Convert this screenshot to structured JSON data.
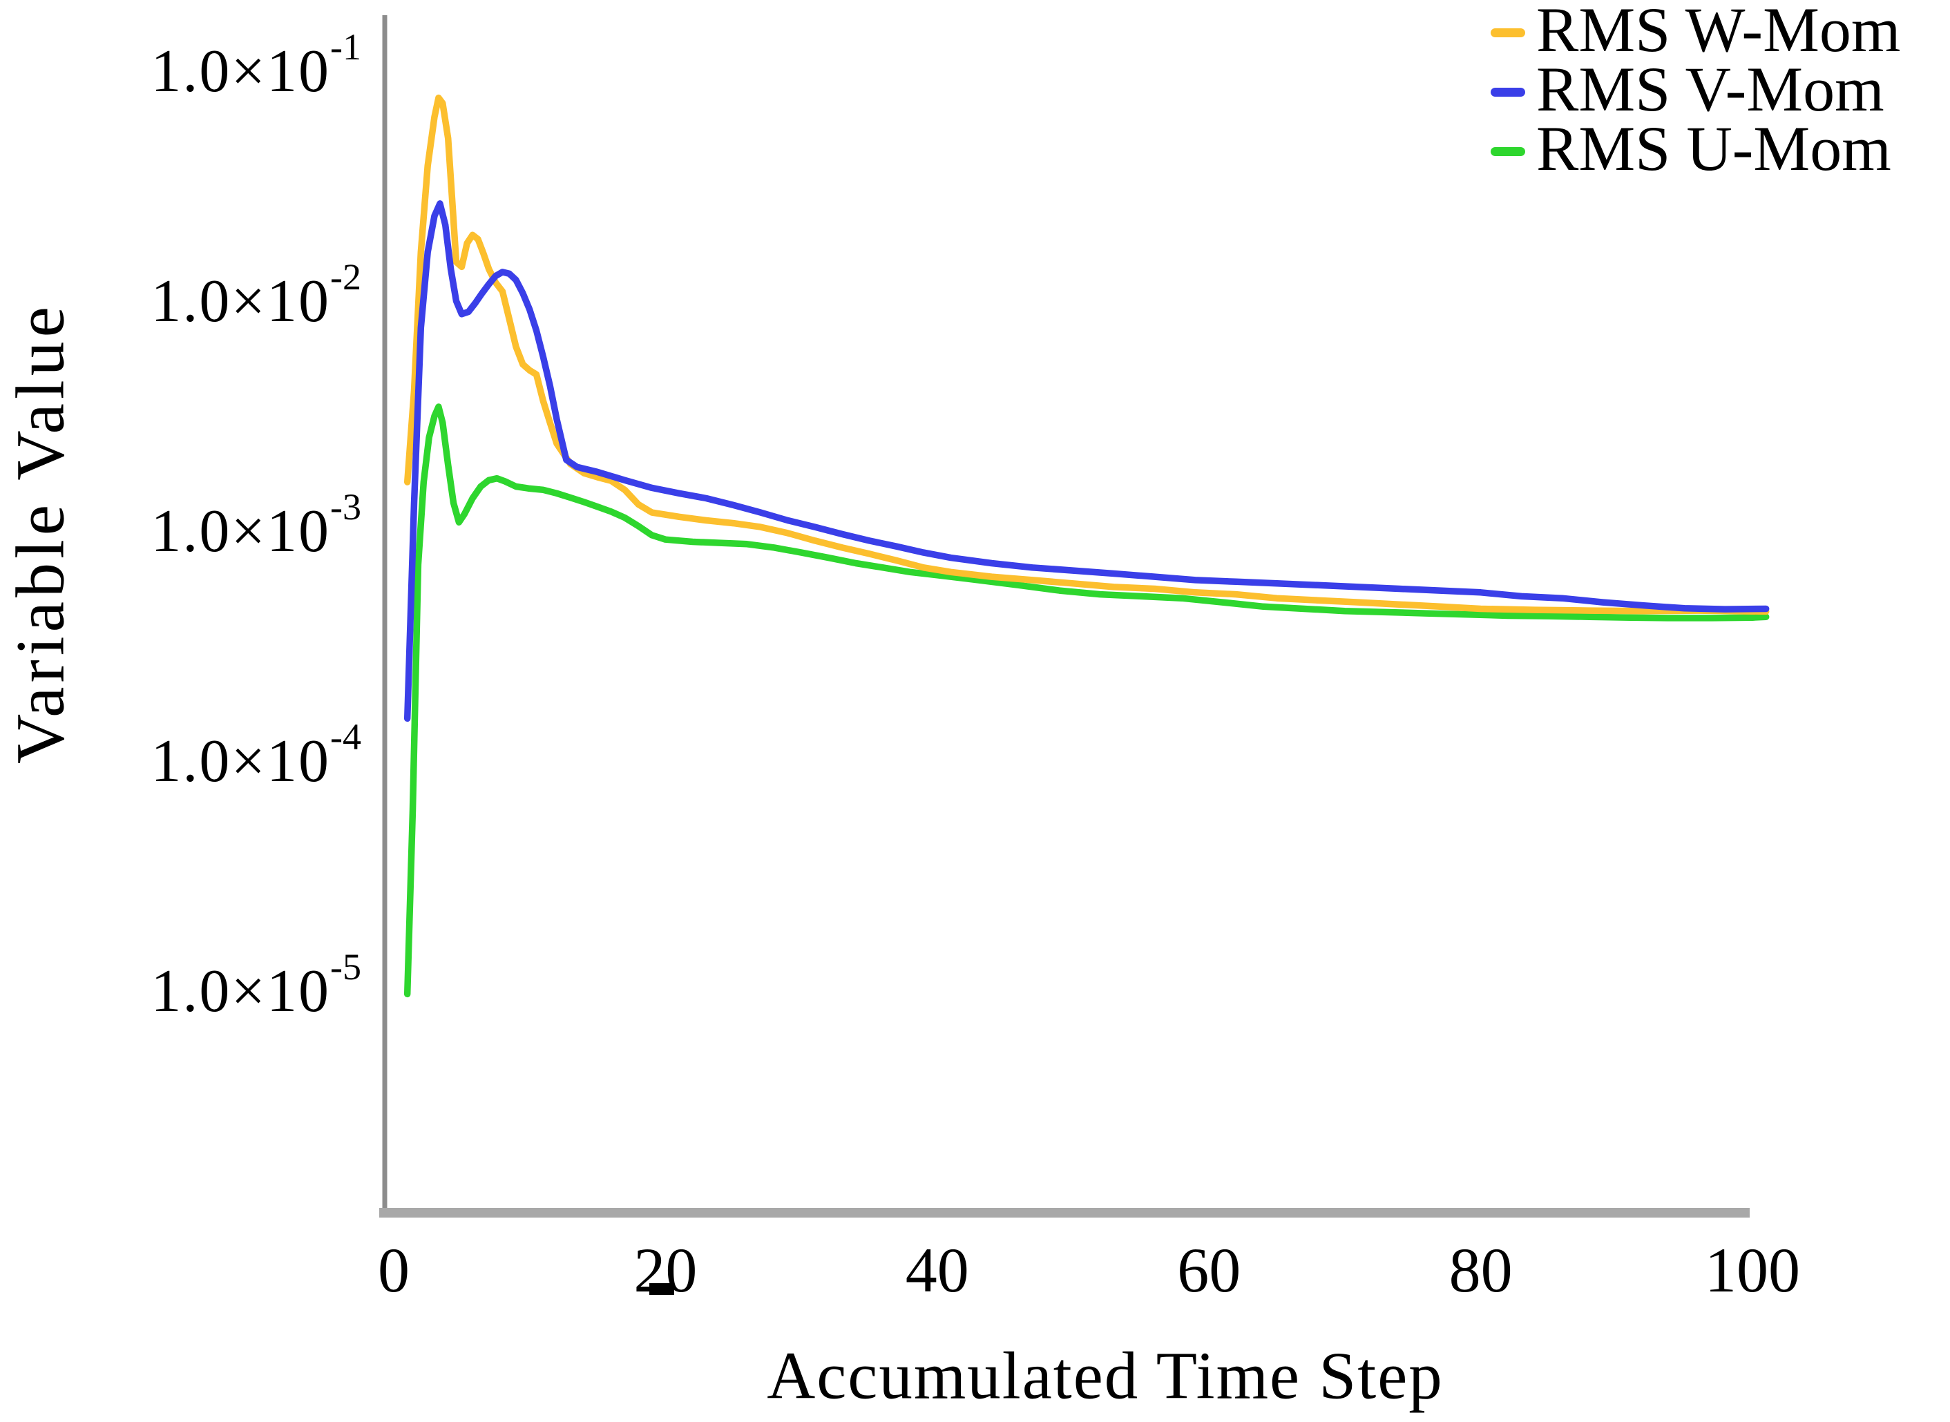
{
  "meta": {
    "background_color": "#FFFFFF",
    "text_color": "#000000",
    "axis_line_color": "#A8A8A8",
    "axis_spine_color": "#8C8C8C"
  },
  "chart_data": {
    "type": "line",
    "title": "",
    "xlabel": "Accumulated Time Step",
    "ylabel": "Variable Value",
    "y_scale": "log",
    "grid": false,
    "legend_position": "top-right",
    "xlim": [
      0,
      104
    ],
    "ylim": [
      1e-06,
      0.16
    ],
    "x_ticks": [
      0,
      20,
      40,
      60,
      80,
      100
    ],
    "x_tick_labels": [
      "0",
      "20",
      "40",
      "60",
      "80",
      "100"
    ],
    "y_ticks_exponents": [
      -1,
      -2,
      -3,
      -4,
      -5
    ],
    "y_ticks": [
      {
        "base": "1.0×10",
        "exp": "-1"
      },
      {
        "base": "1.0×10",
        "exp": "-2"
      },
      {
        "base": "1.0×10",
        "exp": "-3"
      },
      {
        "base": "1.0×10",
        "exp": "-4"
      },
      {
        "base": "1.0×10",
        "exp": "-5"
      }
    ],
    "series": [
      {
        "name": "RMS W-Mom",
        "color": "#FCBF2E",
        "points": [
          [
            1,
            0.0016
          ],
          [
            1.5,
            0.004
          ],
          [
            2,
            0.016
          ],
          [
            2.5,
            0.038
          ],
          [
            3,
            0.062
          ],
          [
            3.3,
            0.075
          ],
          [
            3.6,
            0.071
          ],
          [
            4,
            0.05
          ],
          [
            4.3,
            0.027
          ],
          [
            4.6,
            0.0145
          ],
          [
            5,
            0.0138
          ],
          [
            5.4,
            0.0175
          ],
          [
            5.8,
            0.019
          ],
          [
            6.2,
            0.0182
          ],
          [
            6.6,
            0.0158
          ],
          [
            7,
            0.0135
          ],
          [
            7.5,
            0.0118
          ],
          [
            8,
            0.0108
          ],
          [
            8.5,
            0.0082
          ],
          [
            9,
            0.0062
          ],
          [
            9.5,
            0.0052
          ],
          [
            10,
            0.0049
          ],
          [
            10.5,
            0.0047
          ],
          [
            11,
            0.0036
          ],
          [
            11.5,
            0.0029
          ],
          [
            12,
            0.00235
          ],
          [
            13,
            0.00192
          ],
          [
            14,
            0.00175
          ],
          [
            15,
            0.00168
          ],
          [
            16,
            0.00162
          ],
          [
            17,
            0.00148
          ],
          [
            18,
            0.00128
          ],
          [
            19,
            0.00118
          ],
          [
            21,
            0.00113
          ],
          [
            23,
            0.00109
          ],
          [
            25,
            0.00106
          ],
          [
            27,
            0.00102
          ],
          [
            29,
            0.00096
          ],
          [
            31,
            0.00089
          ],
          [
            33,
            0.00083
          ],
          [
            35,
            0.00078
          ],
          [
            37,
            0.00073
          ],
          [
            39,
            0.00068
          ],
          [
            41,
            0.00065
          ],
          [
            44,
            0.00062
          ],
          [
            47,
            0.0006
          ],
          [
            50,
            0.00058
          ],
          [
            53,
            0.00056
          ],
          [
            56,
            0.00055
          ],
          [
            59,
            0.00053
          ],
          [
            62,
            0.00052
          ],
          [
            65,
            0.0005
          ],
          [
            68,
            0.00049
          ],
          [
            71,
            0.00048
          ],
          [
            74,
            0.00047
          ],
          [
            77,
            0.00046
          ],
          [
            80,
            0.00045
          ],
          [
            84,
            0.000445
          ],
          [
            88,
            0.000442
          ],
          [
            92,
            0.00044
          ],
          [
            96,
            0.000442
          ],
          [
            101,
            0.000438
          ]
        ]
      },
      {
        "name": "RMS V-Mom",
        "color": "#3A3FE8",
        "points": [
          [
            1,
            0.00015
          ],
          [
            1.5,
            0.0013
          ],
          [
            2,
            0.0075
          ],
          [
            2.5,
            0.016
          ],
          [
            3,
            0.023
          ],
          [
            3.4,
            0.026
          ],
          [
            3.8,
            0.021
          ],
          [
            4.2,
            0.0135
          ],
          [
            4.6,
            0.0098
          ],
          [
            5,
            0.0086
          ],
          [
            5.5,
            0.0088
          ],
          [
            6,
            0.0096
          ],
          [
            6.5,
            0.0106
          ],
          [
            7,
            0.0116
          ],
          [
            7.5,
            0.0126
          ],
          [
            8,
            0.0131
          ],
          [
            8.5,
            0.0129
          ],
          [
            9,
            0.0121
          ],
          [
            9.5,
            0.0106
          ],
          [
            10,
            0.009
          ],
          [
            10.5,
            0.0073
          ],
          [
            11,
            0.0056
          ],
          [
            11.5,
            0.0042
          ],
          [
            12,
            0.003
          ],
          [
            12.7,
            0.002
          ],
          [
            13.5,
            0.00186
          ],
          [
            15,
            0.00177
          ],
          [
            17,
            0.00163
          ],
          [
            19,
            0.00151
          ],
          [
            21,
            0.00143
          ],
          [
            23,
            0.00136
          ],
          [
            25,
            0.00127
          ],
          [
            27,
            0.00118
          ],
          [
            29,
            0.00109
          ],
          [
            31,
            0.00102
          ],
          [
            33,
            0.00095
          ],
          [
            35,
            0.00089
          ],
          [
            37,
            0.00084
          ],
          [
            39,
            0.00079
          ],
          [
            41,
            0.00075
          ],
          [
            44,
            0.00071
          ],
          [
            47,
            0.00068
          ],
          [
            50,
            0.00066
          ],
          [
            53,
            0.00064
          ],
          [
            56,
            0.00062
          ],
          [
            59,
            0.0006
          ],
          [
            62,
            0.00059
          ],
          [
            65,
            0.00058
          ],
          [
            68,
            0.00057
          ],
          [
            71,
            0.00056
          ],
          [
            74,
            0.00055
          ],
          [
            77,
            0.00054
          ],
          [
            80,
            0.00053
          ],
          [
            83,
            0.00051
          ],
          [
            86,
            0.0005
          ],
          [
            89,
            0.00048
          ],
          [
            92,
            0.000465
          ],
          [
            95,
            0.000452
          ],
          [
            98,
            0.000448
          ],
          [
            101,
            0.00045
          ]
        ]
      },
      {
        "name": "RMS U-Mom",
        "color": "#2ED62E",
        "points": [
          [
            1,
            9.5e-06
          ],
          [
            1.4,
            6e-05
          ],
          [
            1.8,
            0.0007
          ],
          [
            2.2,
            0.0016
          ],
          [
            2.6,
            0.0025
          ],
          [
            3,
            0.0031
          ],
          [
            3.3,
            0.0034
          ],
          [
            3.6,
            0.0029
          ],
          [
            4,
            0.0019
          ],
          [
            4.4,
            0.0013
          ],
          [
            4.8,
            0.00107
          ],
          [
            5.2,
            0.00116
          ],
          [
            5.8,
            0.00136
          ],
          [
            6.4,
            0.00153
          ],
          [
            7,
            0.00163
          ],
          [
            7.6,
            0.00166
          ],
          [
            8.2,
            0.00161
          ],
          [
            9,
            0.00153
          ],
          [
            10,
            0.0015
          ],
          [
            11,
            0.00148
          ],
          [
            12,
            0.00143
          ],
          [
            13,
            0.00137
          ],
          [
            14,
            0.00131
          ],
          [
            15,
            0.00125
          ],
          [
            16,
            0.00119
          ],
          [
            17,
            0.00112
          ],
          [
            18,
            0.00103
          ],
          [
            19,
            0.00094
          ],
          [
            20,
            0.0009
          ],
          [
            22,
            0.00088
          ],
          [
            24,
            0.00087
          ],
          [
            26,
            0.00086
          ],
          [
            28,
            0.00083
          ],
          [
            30,
            0.00079
          ],
          [
            32,
            0.00075
          ],
          [
            34,
            0.00071
          ],
          [
            36,
            0.00068
          ],
          [
            38,
            0.00065
          ],
          [
            40,
            0.00063
          ],
          [
            43,
            0.0006
          ],
          [
            46,
            0.00057
          ],
          [
            49,
            0.00054
          ],
          [
            52,
            0.00052
          ],
          [
            55,
            0.00051
          ],
          [
            58,
            0.0005
          ],
          [
            61,
            0.00048
          ],
          [
            64,
            0.00046
          ],
          [
            67,
            0.00045
          ],
          [
            70,
            0.00044
          ],
          [
            73,
            0.000435
          ],
          [
            76,
            0.00043
          ],
          [
            79,
            0.000425
          ],
          [
            82,
            0.00042
          ],
          [
            85,
            0.000418
          ],
          [
            88,
            0.000415
          ],
          [
            91,
            0.000412
          ],
          [
            94,
            0.00041
          ],
          [
            97,
            0.00041
          ],
          [
            100,
            0.000412
          ],
          [
            101,
            0.000415
          ]
        ]
      }
    ]
  }
}
